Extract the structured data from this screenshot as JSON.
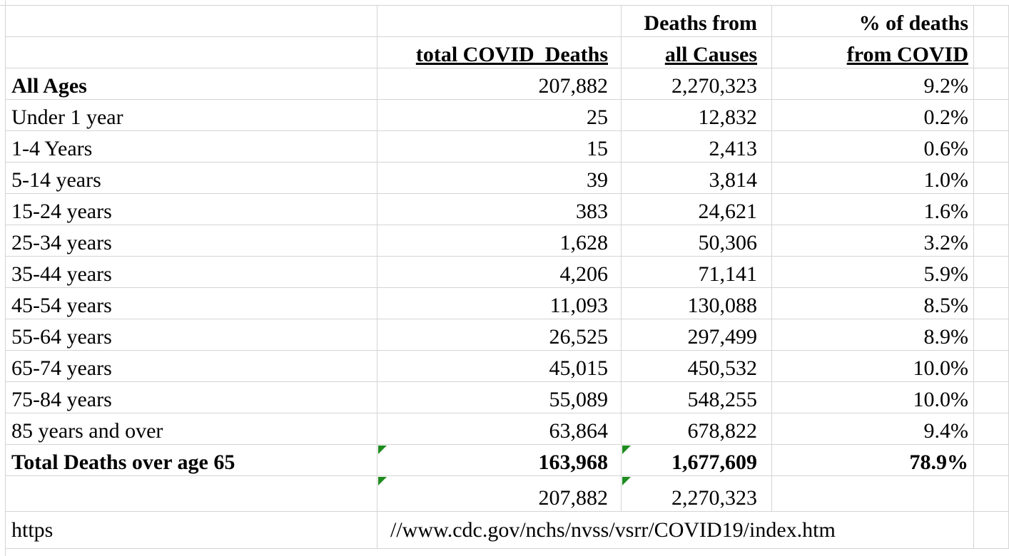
{
  "table": {
    "header": {
      "covid": "total COVID  Deaths",
      "all": [
        "Deaths from",
        "all Causes"
      ],
      "pct": [
        "% of deaths",
        "from COVID"
      ]
    },
    "rows": [
      [
        "All Ages",
        "207,882",
        "2,270,323",
        "9.2%"
      ],
      [
        "Under 1 year",
        "25",
        "12,832",
        "0.2%"
      ],
      [
        "1-4 Years",
        "15",
        "2,413",
        "0.6%"
      ],
      [
        "5-14 years",
        "39",
        "3,814",
        "1.0%"
      ],
      [
        "15-24 years",
        "383",
        "24,621",
        "1.6%"
      ],
      [
        "25-34 years",
        "1,628",
        "50,306",
        "3.2%"
      ],
      [
        "35-44 years",
        "4,206",
        "71,141",
        "5.9%"
      ],
      [
        "45-54 years",
        "11,093",
        "130,088",
        "8.5%"
      ],
      [
        "55-64 years",
        "26,525",
        "297,499",
        "8.9%"
      ],
      [
        "65-74 years",
        "45,015",
        "450,532",
        "10.0%"
      ],
      [
        "75-84 years",
        "55,089",
        "548,255",
        "10.0%"
      ],
      [
        "85 years and over",
        "63,864",
        "678,822",
        "9.4%"
      ]
    ],
    "total": [
      "Total Deaths over age 65",
      "163,968",
      "1,677,609",
      "78.9%"
    ],
    "check": [
      "207,882",
      "2,270,323"
    ],
    "source": [
      "https",
      "//www.cdc.gov/nchs/nvss/vsrr/COVID19/index.htm"
    ]
  }
}
